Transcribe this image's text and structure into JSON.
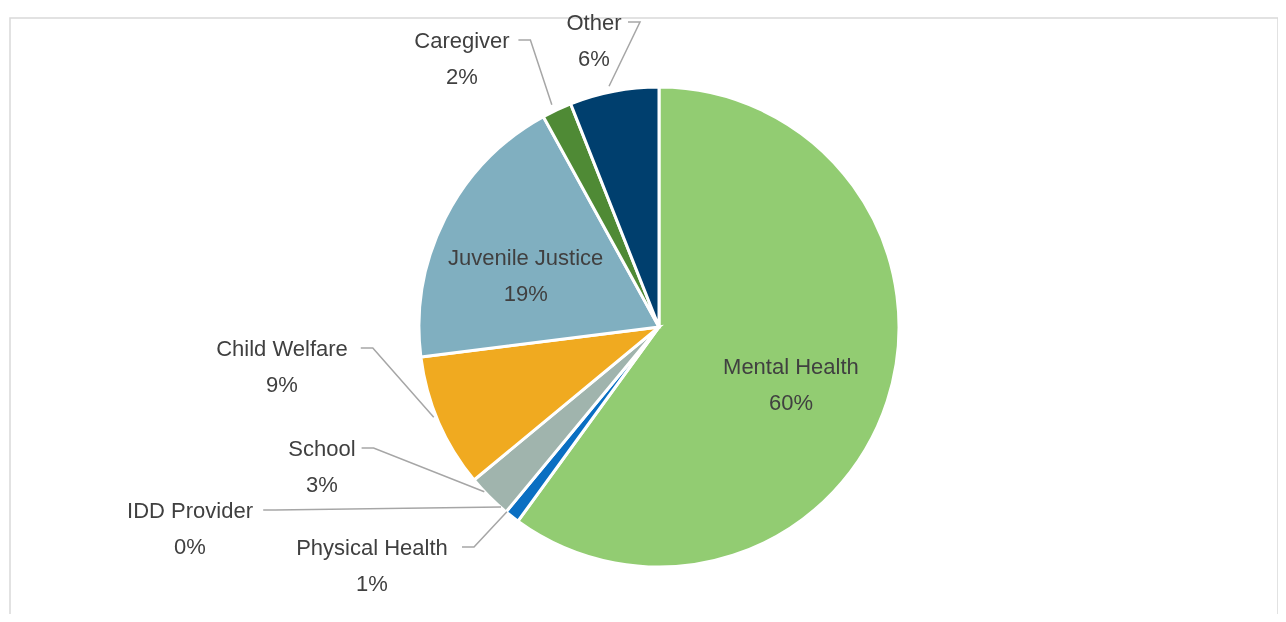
{
  "chart_data": {
    "type": "pie",
    "categories": [
      "Mental Health",
      "Physical Health",
      "IDD Provider",
      "School",
      "Child Welfare",
      "Juvenile Justice",
      "Caregiver",
      "Other"
    ],
    "values": [
      60,
      1,
      0,
      3,
      9,
      19,
      2,
      6
    ],
    "colors": [
      "#92cc72",
      "#0a6fc2",
      "#a9c9d8",
      "#a0b4ad",
      "#f0aa20",
      "#80afc0",
      "#4f8a35",
      "#003f6e"
    ],
    "value_labels": [
      "60%",
      "1%",
      "0%",
      "3%",
      "9%",
      "19%",
      "2%",
      "6%"
    ]
  }
}
